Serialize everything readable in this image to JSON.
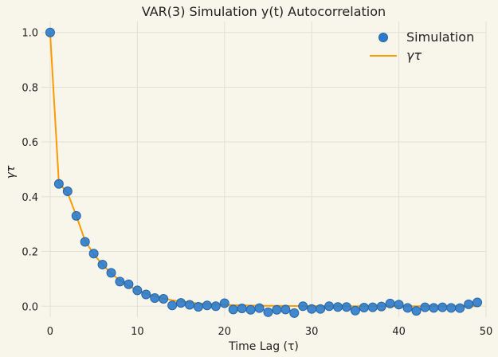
{
  "chart_data": {
    "type": "scatter",
    "title": "VAR(3) Simulation y(t) Autocorrelation",
    "xlabel": "Time Lag (τ)",
    "ylabel": "γτ",
    "xlim": [
      -1,
      50
    ],
    "ylim": [
      -0.04,
      1.04
    ],
    "x_ticks": [
      0,
      10,
      20,
      30,
      40,
      50
    ],
    "y_ticks": [
      0.0,
      0.2,
      0.4,
      0.6,
      0.8,
      1.0
    ],
    "x_tick_labels": [
      "0",
      "10",
      "20",
      "30",
      "40",
      "50"
    ],
    "y_tick_labels": [
      "0.0",
      "0.2",
      "0.4",
      "0.6",
      "0.8",
      "1.0"
    ],
    "grid": true,
    "legend": {
      "position": "top-right",
      "entries": [
        "Simulation",
        "γτ"
      ]
    },
    "colors": {
      "simulation": "#2b7bcb",
      "theory": "#ff9900",
      "background": "#f8f6ea",
      "grid": "#e2e0d2"
    },
    "series": [
      {
        "name": "Simulation",
        "kind": "scatter",
        "x": [
          0,
          1,
          2,
          3,
          4,
          5,
          6,
          7,
          8,
          9,
          10,
          11,
          12,
          13,
          14,
          15,
          16,
          17,
          18,
          19,
          20,
          21,
          22,
          23,
          24,
          25,
          26,
          27,
          28,
          29,
          30,
          31,
          32,
          33,
          34,
          35,
          36,
          37,
          38,
          39,
          40,
          41,
          42,
          43,
          44,
          45,
          46,
          47,
          48,
          49
        ],
        "y": [
          1.0,
          0.447,
          0.42,
          0.33,
          0.235,
          0.192,
          0.152,
          0.122,
          0.09,
          0.08,
          0.058,
          0.043,
          0.03,
          0.027,
          0.003,
          0.012,
          0.005,
          -0.002,
          0.003,
          0.0,
          0.011,
          -0.012,
          -0.008,
          -0.013,
          -0.007,
          -0.022,
          -0.013,
          -0.012,
          -0.025,
          0.0,
          -0.01,
          -0.01,
          0.0,
          -0.003,
          -0.003,
          -0.016,
          -0.005,
          -0.004,
          -0.001,
          0.01,
          0.006,
          -0.006,
          -0.017,
          -0.004,
          -0.006,
          -0.004,
          -0.006,
          -0.007,
          0.007,
          0.014
        ]
      },
      {
        "name": "γτ",
        "kind": "line",
        "x": [
          0,
          1,
          2,
          3,
          4,
          5,
          6,
          7,
          8,
          9,
          10,
          11,
          12,
          13,
          14,
          15,
          16,
          17,
          18,
          19,
          20,
          21,
          22,
          23,
          24,
          25,
          26,
          27,
          28,
          29,
          30,
          31,
          32,
          33,
          34,
          35,
          36,
          37,
          38,
          39,
          40,
          41,
          42,
          43,
          44,
          45,
          46,
          47,
          48,
          49
        ],
        "y": [
          1.0,
          0.45,
          0.415,
          0.33,
          0.24,
          0.19,
          0.152,
          0.12,
          0.094,
          0.075,
          0.058,
          0.046,
          0.036,
          0.028,
          0.022,
          0.017,
          0.013,
          0.01,
          0.008,
          0.006,
          0.005,
          0.004,
          0.003,
          0.0025,
          0.002,
          0.0015,
          0.0012,
          0.001,
          0.0008,
          0.0006,
          0.0005,
          0.0004,
          0.0003,
          0.0002,
          0.0002,
          0.0001,
          0.0001,
          0.0001,
          0.0,
          0.0,
          0.0,
          0.0,
          0.0,
          0.0,
          0.0,
          0.0,
          0.0,
          0.0,
          0.0,
          0.0
        ]
      }
    ]
  }
}
